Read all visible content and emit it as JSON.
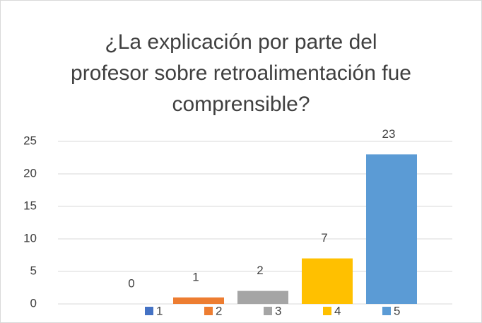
{
  "chart_data": {
    "type": "bar",
    "title": "¿La explicación por parte del profesor sobre retroalimentación fue comprensible?",
    "categories": [
      null
    ],
    "series": [
      {
        "name": "1",
        "color": "#4472c4",
        "values": [
          0
        ]
      },
      {
        "name": "2",
        "color": "#ed7d31",
        "values": [
          1
        ]
      },
      {
        "name": "3",
        "color": "#a5a5a5",
        "values": [
          2
        ]
      },
      {
        "name": "4",
        "color": "#ffc000",
        "values": [
          7
        ]
      },
      {
        "name": "5",
        "color": "#5b9bd5",
        "values": [
          23
        ]
      }
    ],
    "ylim": [
      0,
      25
    ],
    "yticks": [
      0,
      5,
      10,
      15,
      20,
      25
    ],
    "grid": true,
    "legend": "bottom",
    "data_labels": true
  }
}
